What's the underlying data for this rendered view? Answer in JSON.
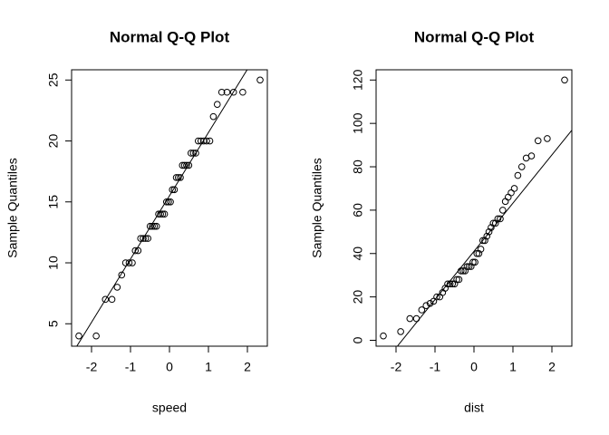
{
  "chart_data": [
    {
      "type": "scatter",
      "title": "Normal Q-Q Plot",
      "x_label": "speed",
      "y_label": "Sample Quantiles",
      "x": [
        -2.326,
        -1.881,
        -1.645,
        -1.476,
        -1.341,
        -1.227,
        -1.126,
        -1.036,
        -0.954,
        -0.878,
        -0.806,
        -0.739,
        -0.674,
        -0.613,
        -0.553,
        -0.496,
        -0.44,
        -0.385,
        -0.332,
        -0.279,
        -0.228,
        -0.176,
        -0.126,
        -0.075,
        -0.025,
        0.025,
        0.075,
        0.126,
        0.176,
        0.228,
        0.279,
        0.332,
        0.385,
        0.44,
        0.496,
        0.553,
        0.613,
        0.674,
        0.739,
        0.806,
        0.878,
        0.954,
        1.036,
        1.126,
        1.227,
        1.341,
        1.476,
        1.645,
        1.881,
        2.326
      ],
      "values": [
        4,
        4,
        7,
        7,
        8,
        9,
        10,
        10,
        10,
        11,
        11,
        12,
        12,
        12,
        12,
        13,
        13,
        13,
        13,
        14,
        14,
        14,
        14,
        15,
        15,
        15,
        16,
        16,
        17,
        17,
        17,
        18,
        18,
        18,
        18,
        19,
        19,
        19,
        20,
        20,
        20,
        20,
        20,
        22,
        23,
        24,
        24,
        24,
        24,
        25
      ],
      "reference_line": {
        "intercept": 15.5,
        "slope": 5.189
      },
      "color": "#000000",
      "xlim": [
        -2.512,
        2.512
      ],
      "xticks": [
        -2,
        -1,
        0,
        1,
        2
      ],
      "ylim": [
        3.16,
        25.84
      ],
      "yticks": [
        5,
        10,
        15,
        20,
        25
      ]
    },
    {
      "type": "scatter",
      "title": "Normal Q-Q Plot",
      "x_label": "dist",
      "y_label": "Sample Quantiles",
      "x": [
        -2.326,
        -1.881,
        -1.645,
        -1.476,
        -1.341,
        -1.227,
        -1.126,
        -1.036,
        -0.954,
        -0.878,
        -0.806,
        -0.739,
        -0.674,
        -0.613,
        -0.553,
        -0.496,
        -0.44,
        -0.385,
        -0.332,
        -0.279,
        -0.228,
        -0.176,
        -0.126,
        -0.075,
        -0.025,
        0.025,
        0.075,
        0.126,
        0.176,
        0.228,
        0.279,
        0.332,
        0.385,
        0.44,
        0.496,
        0.553,
        0.613,
        0.674,
        0.739,
        0.806,
        0.878,
        0.954,
        1.036,
        1.126,
        1.227,
        1.341,
        1.476,
        1.645,
        1.881,
        2.326
      ],
      "values": [
        2,
        4,
        10,
        10,
        14,
        16,
        17,
        18,
        20,
        20,
        22,
        24,
        26,
        26,
        26,
        26,
        28,
        28,
        32,
        32,
        32,
        34,
        34,
        34,
        36,
        36,
        40,
        40,
        42,
        46,
        46,
        48,
        50,
        52,
        54,
        54,
        56,
        56,
        60,
        64,
        66,
        68,
        70,
        76,
        80,
        84,
        85,
        92,
        93,
        120
      ],
      "reference_line": {
        "intercept": 41,
        "slope": 22.24
      },
      "color": "#000000",
      "xlim": [
        -2.512,
        2.512
      ],
      "xticks": [
        -2,
        -1,
        0,
        1,
        2
      ],
      "ylim": [
        -2.72,
        124.72
      ],
      "yticks": [
        0,
        20,
        40,
        60,
        80,
        100,
        120
      ]
    }
  ]
}
